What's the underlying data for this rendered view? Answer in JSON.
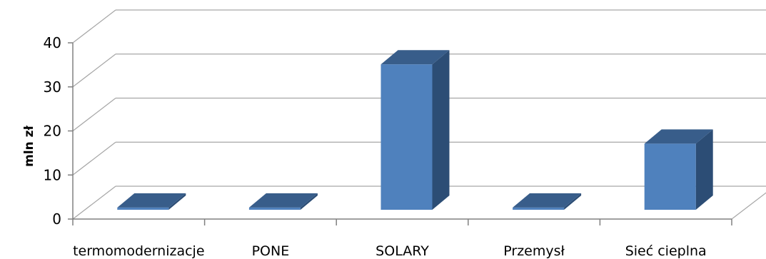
{
  "chart_data": {
    "type": "bar",
    "categories": [
      "termomodernizacje",
      "PONE",
      "SOLARY",
      "Przemysł",
      "Sieć cieplna"
    ],
    "values": [
      0.5,
      0.5,
      33,
      0.5,
      15
    ],
    "title": "",
    "xlabel": "",
    "ylabel": "mln zł",
    "ylim": [
      0,
      40
    ],
    "yticks": [
      "0",
      "10",
      "20",
      "30",
      "40"
    ],
    "grid": true,
    "three_d": true,
    "colors": {
      "bar_front": "#4f81bd",
      "bar_side": "#2c4d75",
      "bar_top": "#385d8a",
      "grid": "#a6a6a6",
      "axis": "#808080"
    }
  }
}
